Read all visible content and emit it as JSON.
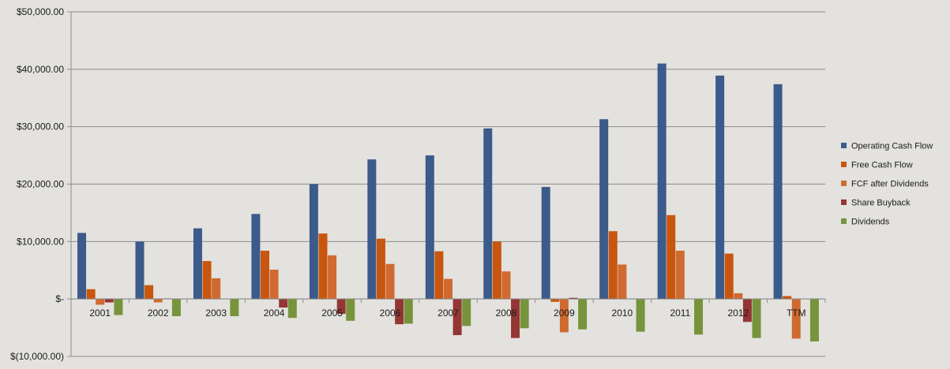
{
  "chart_data": {
    "type": "bar",
    "title": "",
    "xlabel": "",
    "ylabel": "",
    "ylim": [
      -10000,
      50000
    ],
    "grid": true,
    "legend_position": "right",
    "y_ticks": [
      {
        "value": 50000,
        "label": "$50,000.00"
      },
      {
        "value": 40000,
        "label": "$40,000.00"
      },
      {
        "value": 30000,
        "label": "$30,000.00"
      },
      {
        "value": 20000,
        "label": "$20,000.00"
      },
      {
        "value": 10000,
        "label": "$10,000.00"
      },
      {
        "value": 0,
        "label": "$-"
      },
      {
        "value": -10000,
        "label": "$(10,000.00)"
      }
    ],
    "categories": [
      "2001",
      "2002",
      "2003",
      "2004",
      "2005",
      "2006",
      "2007",
      "2008",
      "2009",
      "2010",
      "2011",
      "2012",
      "TTM"
    ],
    "series": [
      {
        "name": "Operating Cash Flow",
        "color": "#3c5a8a",
        "values": [
          11500,
          10000,
          12300,
          14800,
          20000,
          24300,
          25000,
          29700,
          19500,
          31300,
          41000,
          38900,
          37400
        ]
      },
      {
        "name": "Free Cash Flow",
        "color": "#c8560e",
        "values": [
          1700,
          2400,
          6600,
          8400,
          11400,
          10500,
          8300,
          10000,
          -500,
          11800,
          14600,
          7900,
          500
        ]
      },
      {
        "name": "FCF after Dividends",
        "color": "#d06a30",
        "values": [
          -1000,
          -600,
          3600,
          5100,
          7600,
          6100,
          3500,
          4800,
          -5800,
          6000,
          8400,
          1000,
          -6900
        ]
      },
      {
        "name": "Share Buyback",
        "color": "#943634",
        "values": [
          -600,
          100,
          0,
          -1500,
          -2600,
          -4400,
          -6300,
          -6800,
          200,
          0,
          0,
          -4000,
          0
        ]
      },
      {
        "name": "Dividends",
        "color": "#77933c",
        "values": [
          -2800,
          -3000,
          -3000,
          -3300,
          -3800,
          -4300,
          -4700,
          -5100,
          -5300,
          -5700,
          -6200,
          -6800,
          -7400
        ]
      }
    ]
  }
}
